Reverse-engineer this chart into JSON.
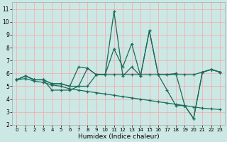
{
  "xlabel": "Humidex (Indice chaleur)",
  "xlim": [
    -0.5,
    23.5
  ],
  "ylim": [
    2,
    11.5
  ],
  "yticks": [
    2,
    3,
    4,
    5,
    6,
    7,
    8,
    9,
    10,
    11
  ],
  "xticks": [
    0,
    1,
    2,
    3,
    4,
    5,
    6,
    7,
    8,
    9,
    10,
    11,
    12,
    13,
    14,
    15,
    16,
    17,
    18,
    19,
    20,
    21,
    22,
    23
  ],
  "bg_color": "#cce8e4",
  "grid_color": "#f0b0b0",
  "line_color": "#1a6b5a",
  "lines": [
    {
      "x": [
        0,
        1,
        2,
        3,
        4,
        5,
        6,
        7,
        8,
        9,
        10,
        11,
        12,
        13,
        14,
        15,
        16,
        17,
        18,
        19,
        20,
        21,
        22,
        23
      ],
      "y": [
        5.5,
        5.8,
        5.5,
        5.5,
        5.2,
        5.2,
        5.0,
        6.5,
        6.4,
        5.9,
        5.9,
        10.8,
        5.8,
        6.5,
        5.8,
        9.3,
        5.9,
        5.9,
        6.0,
        3.5,
        2.5,
        6.1,
        6.3,
        6.1
      ]
    },
    {
      "x": [
        0,
        1,
        2,
        3,
        4,
        5,
        6,
        7,
        8,
        9,
        10,
        11,
        12,
        13,
        14,
        15,
        16,
        17,
        18,
        19,
        20,
        21,
        22,
        23
      ],
      "y": [
        5.5,
        5.8,
        5.5,
        5.5,
        5.2,
        5.2,
        5.0,
        5.0,
        5.0,
        5.9,
        5.9,
        5.9,
        5.9,
        5.9,
        5.9,
        5.9,
        5.9,
        5.9,
        5.9,
        5.9,
        5.9,
        6.1,
        6.3,
        6.1
      ]
    },
    {
      "x": [
        0,
        1,
        2,
        3,
        4,
        5,
        6,
        7,
        8,
        9,
        10,
        11,
        12,
        13,
        14,
        15,
        16,
        17,
        18,
        19,
        20,
        21,
        22,
        23
      ],
      "y": [
        5.5,
        5.8,
        5.5,
        5.5,
        4.7,
        4.7,
        4.7,
        5.0,
        6.4,
        5.9,
        5.9,
        7.9,
        6.5,
        8.3,
        5.8,
        9.3,
        5.9,
        4.7,
        3.5,
        3.5,
        2.5,
        6.1,
        6.3,
        6.1
      ]
    },
    {
      "x": [
        0,
        1,
        2,
        3,
        4,
        5,
        6,
        7,
        8,
        9,
        10,
        11,
        12,
        13,
        14,
        15,
        16,
        17,
        18,
        19,
        20,
        21,
        22,
        23
      ],
      "y": [
        5.5,
        5.6,
        5.4,
        5.3,
        5.1,
        5.0,
        4.8,
        4.7,
        4.6,
        4.5,
        4.4,
        4.3,
        4.2,
        4.1,
        4.0,
        3.9,
        3.8,
        3.7,
        3.6,
        3.5,
        3.4,
        3.3,
        3.25,
        3.2
      ]
    }
  ]
}
